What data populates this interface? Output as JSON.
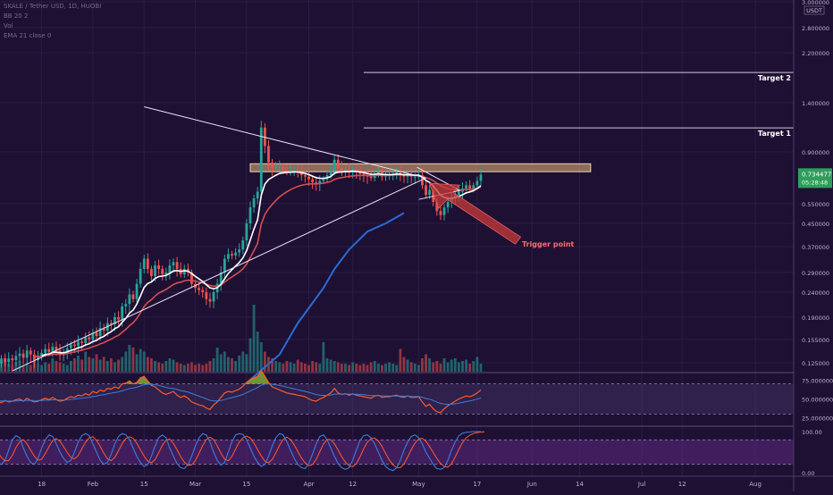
{
  "legend": {
    "line1": "SKALE / Tether USD, 1D, HUOBI",
    "line2": "BB 20 2",
    "line3": "Vol",
    "line4": "EMA 21 close 0"
  },
  "price_axis": {
    "unit_badge": "USDT",
    "current_price": "0.734477",
    "countdown": "05:28:48"
  },
  "annotations": {
    "target1_label": "Target 1",
    "target1_value": "1.116577",
    "target2_label": "Target 2",
    "target2_value": "1.839782",
    "trigger_label": "Trigger point"
  },
  "rsi_panel": {
    "ticks": [
      "75.000000",
      "50.000000",
      "25.000000"
    ]
  },
  "stoch_panel": {
    "ticks": [
      "100.00",
      "0.00"
    ]
  },
  "colors": {
    "background": "#1e1033",
    "up": "#26a69a",
    "down": "#ef5350",
    "ema_fast": "#ffffff",
    "ema_mid": "#d64e4e",
    "ema_slow": "#2a6bd6",
    "resistance_zone": "#d4a373",
    "trigger_arrow": "#c93a3a",
    "rsi_band": "#6f5aa8",
    "stoch_band": "#5c2a82"
  },
  "chart_data": {
    "type": "candlestick",
    "price_scale": "log",
    "ylim": [
      0.11,
      3.2
    ],
    "y_ticks": [
      "3.000000",
      "2.800000",
      "2.200000",
      "1.400000",
      "0.900000",
      "0.550000",
      "0.450000",
      "0.370000",
      "0.290000",
      "0.240000",
      "0.190000",
      "0.155000",
      "0.125000"
    ],
    "x_ticks": [
      "18",
      "Feb",
      "15",
      "Mar",
      "15",
      "Apr",
      "12",
      "May",
      "17",
      "Jun",
      "14",
      "Jul",
      "12",
      "Aug"
    ],
    "x_tick_day": [
      -14,
      0,
      14,
      28,
      42,
      59,
      71,
      89,
      105,
      120,
      133,
      150,
      161,
      181
    ],
    "candle_start_day": -28,
    "candles_close": [
      0.135,
      0.128,
      0.124,
      0.13,
      0.126,
      0.13,
      0.128,
      0.133,
      0.136,
      0.131,
      0.14,
      0.135,
      0.128,
      0.132,
      0.137,
      0.142,
      0.138,
      0.145,
      0.14,
      0.134,
      0.137,
      0.143,
      0.148,
      0.146,
      0.152,
      0.15,
      0.158,
      0.155,
      0.165,
      0.16,
      0.172,
      0.168,
      0.18,
      0.178,
      0.19,
      0.186,
      0.21,
      0.215,
      0.235,
      0.225,
      0.26,
      0.3,
      0.33,
      0.3,
      0.28,
      0.31,
      0.3,
      0.285,
      0.29,
      0.31,
      0.32,
      0.3,
      0.285,
      0.3,
      0.29,
      0.26,
      0.25,
      0.245,
      0.24,
      0.225,
      0.22,
      0.24,
      0.26,
      0.29,
      0.33,
      0.345,
      0.34,
      0.35,
      0.36,
      0.39,
      0.45,
      0.53,
      0.58,
      0.62,
      1.12,
      0.95,
      0.82,
      0.78,
      0.79,
      0.79,
      0.77,
      0.76,
      0.76,
      0.76,
      0.75,
      0.73,
      0.72,
      0.7,
      0.68,
      0.67,
      0.69,
      0.7,
      0.73,
      0.76,
      0.84,
      0.78,
      0.76,
      0.77,
      0.75,
      0.77,
      0.75,
      0.74,
      0.73,
      0.72,
      0.71,
      0.74,
      0.75,
      0.72,
      0.73,
      0.73,
      0.74,
      0.75,
      0.73,
      0.72,
      0.74,
      0.72,
      0.72,
      0.73,
      0.66,
      0.6,
      0.63,
      0.56,
      0.51,
      0.49,
      0.53,
      0.56,
      0.58,
      0.6,
      0.62,
      0.64,
      0.66,
      0.64,
      0.66,
      0.69,
      0.734
    ],
    "volume_relative": [
      0.12,
      0.18,
      0.1,
      0.15,
      0.2,
      0.12,
      0.1,
      0.14,
      0.16,
      0.1,
      0.12,
      0.1,
      0.18,
      0.12,
      0.1,
      0.14,
      0.12,
      0.2,
      0.16,
      0.14,
      0.12,
      0.1,
      0.16,
      0.2,
      0.24,
      0.18,
      0.3,
      0.22,
      0.2,
      0.26,
      0.18,
      0.22,
      0.16,
      0.2,
      0.14,
      0.18,
      0.22,
      0.3,
      0.4,
      0.36,
      0.26,
      0.34,
      0.3,
      0.22,
      0.2,
      0.16,
      0.14,
      0.12,
      0.16,
      0.2,
      0.18,
      0.14,
      0.12,
      0.1,
      0.12,
      0.14,
      0.1,
      0.12,
      0.1,
      0.12,
      0.16,
      0.2,
      0.36,
      0.26,
      0.3,
      0.22,
      0.2,
      0.16,
      0.24,
      0.3,
      0.26,
      0.5,
      1.0,
      0.6,
      0.44,
      0.3,
      0.22,
      0.2,
      0.16,
      0.14,
      0.12,
      0.16,
      0.14,
      0.12,
      0.18,
      0.14,
      0.12,
      0.1,
      0.16,
      0.14,
      0.12,
      0.44,
      0.2,
      0.18,
      0.16,
      0.14,
      0.12,
      0.12,
      0.1,
      0.14,
      0.12,
      0.1,
      0.12,
      0.1,
      0.14,
      0.16,
      0.12,
      0.1,
      0.12,
      0.14,
      0.12,
      0.1,
      0.34,
      0.22,
      0.18,
      0.14,
      0.12,
      0.1,
      0.2,
      0.26,
      0.2,
      0.14,
      0.16,
      0.12,
      0.2,
      0.14,
      0.18,
      0.2,
      0.14,
      0.16,
      0.18,
      0.12,
      0.16,
      0.22,
      0.12
    ],
    "ema_slow_points": [
      [
        43,
        0.105
      ],
      [
        51,
        0.135
      ],
      [
        56,
        0.18
      ],
      [
        63,
        0.25
      ],
      [
        66,
        0.3
      ],
      [
        70,
        0.36
      ],
      [
        75,
        0.42
      ],
      [
        80,
        0.45
      ],
      [
        85,
        0.5
      ]
    ],
    "resistance_zone": [
      0.755,
      0.81
    ],
    "target1": 1.116577,
    "target2": 1.839782,
    "triangle": {
      "top_start": [
        14,
        1.35
      ],
      "apex": [
        91,
        0.71
      ],
      "bottom_start": [
        -22,
        0.115
      ]
    },
    "rsi": {
      "ylim": [
        15,
        85
      ],
      "values": [
        48,
        46,
        47,
        45,
        48,
        46,
        47,
        49,
        50,
        47,
        51,
        48,
        46,
        47,
        49,
        51,
        49,
        52,
        49,
        47,
        48,
        51,
        53,
        52,
        55,
        54,
        57,
        55,
        60,
        58,
        62,
        60,
        64,
        63,
        66,
        64,
        70,
        71,
        74,
        70,
        72,
        78,
        80,
        74,
        68,
        66,
        62,
        58,
        56,
        58,
        60,
        55,
        52,
        54,
        51,
        46,
        44,
        42,
        41,
        38,
        36,
        42,
        46,
        52,
        58,
        60,
        59,
        61,
        63,
        67,
        72,
        76,
        78,
        80,
        88,
        80,
        72,
        66,
        64,
        62,
        60,
        58,
        57,
        56,
        55,
        54,
        53,
        50,
        48,
        47,
        50,
        52,
        55,
        58,
        64,
        58,
        56,
        57,
        55,
        57,
        55,
        54,
        53,
        52,
        51,
        54,
        55,
        52,
        53,
        53,
        54,
        55,
        53,
        52,
        54,
        52,
        52,
        53,
        46,
        40,
        43,
        37,
        33,
        32,
        37,
        41,
        44,
        47,
        50,
        52,
        54,
        53,
        55,
        58,
        62
      ]
    },
    "stoch": {
      "ylim": [
        0,
        100
      ],
      "k_values": [
        60,
        40,
        25,
        20,
        30,
        55,
        80,
        90,
        85,
        60,
        40,
        25,
        20,
        35,
        60,
        80,
        92,
        88,
        70,
        50,
        35,
        25,
        30,
        50,
        75,
        90,
        95,
        90,
        70,
        50,
        30,
        20,
        25,
        45,
        70,
        88,
        95,
        92,
        80,
        60,
        40,
        25,
        15,
        20,
        40,
        65,
        85,
        92,
        85,
        60,
        40,
        22,
        12,
        10,
        20,
        40,
        65,
        85,
        95,
        92,
        75,
        50,
        30,
        18,
        25,
        50,
        75,
        92,
        95,
        93,
        80,
        60,
        40,
        25,
        15,
        20,
        40,
        65,
        85,
        95,
        92,
        75,
        55,
        35,
        20,
        12,
        10,
        22,
        45,
        70,
        88,
        92,
        80,
        60,
        40,
        22,
        12,
        8,
        12,
        30,
        55,
        78,
        90,
        92,
        85,
        70,
        50,
        30,
        15,
        8,
        5,
        12,
        30,
        55,
        75,
        88,
        92,
        85,
        70,
        50,
        35,
        20,
        10,
        8,
        12,
        30,
        55,
        75,
        90,
        96,
        98,
        99,
        100,
        100,
        100
      ]
    }
  }
}
